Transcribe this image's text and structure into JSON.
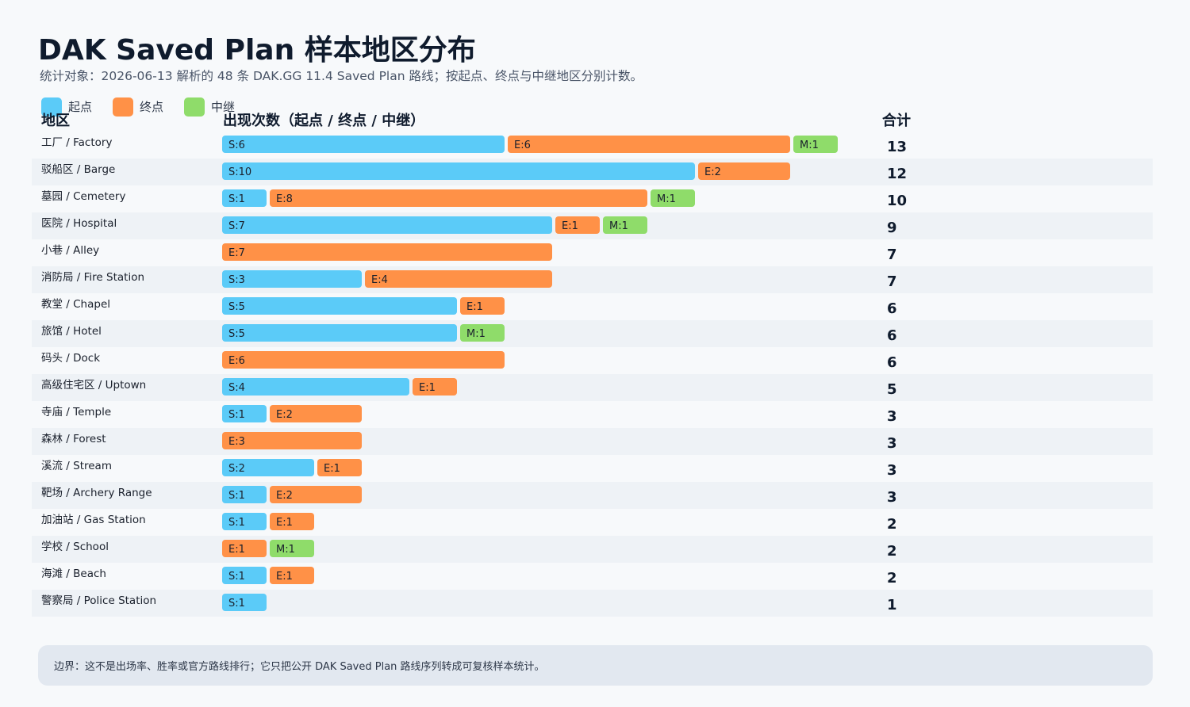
{
  "header": {
    "title": "DAK Saved Plan 样本地区分布",
    "subtitle": "统计对象：2026-06-13 解析的 48 条 DAK.GG 11.4 Saved Plan 路线；按起点、终点与中继地区分别计数。"
  },
  "legend": {
    "start": "起点",
    "end": "终点",
    "mid": "中继"
  },
  "columns": {
    "region": "地区",
    "count": "出现次数（起点 / 终点 / 中继）",
    "total": "合计"
  },
  "colors": {
    "start": "#5bcbf8",
    "end": "#ff9147",
    "mid": "#8fdc6a",
    "row_alt": "#eef2f6"
  },
  "chart_data": {
    "type": "bar",
    "orientation": "horizontal-stacked",
    "categories": [
      "工厂 / Factory",
      "驳船区 / Barge",
      "墓园 / Cemetery",
      "医院 / Hospital",
      "小巷 / Alley",
      "消防局 / Fire Station",
      "教堂 / Chapel",
      "旅馆 / Hotel",
      "码头 / Dock",
      "高级住宅区 / Uptown",
      "寺庙 / Temple",
      "森林 / Forest",
      "溪流 / Stream",
      "靶场 / Archery Range",
      "加油站 / Gas Station",
      "学校 / School",
      "海滩 / Beach",
      "警察局 / Police Station"
    ],
    "series": [
      {
        "name": "起点",
        "prefix": "S",
        "values": [
          6,
          10,
          1,
          7,
          0,
          3,
          5,
          5,
          0,
          4,
          1,
          0,
          2,
          1,
          1,
          0,
          1,
          1
        ]
      },
      {
        "name": "终点",
        "prefix": "E",
        "values": [
          6,
          2,
          8,
          1,
          7,
          4,
          1,
          0,
          6,
          1,
          2,
          3,
          1,
          2,
          1,
          1,
          1,
          0
        ]
      },
      {
        "name": "中继",
        "prefix": "M",
        "values": [
          1,
          0,
          1,
          1,
          0,
          0,
          0,
          1,
          0,
          0,
          0,
          0,
          0,
          0,
          0,
          1,
          0,
          0
        ]
      }
    ],
    "totals": [
      13,
      12,
      10,
      9,
      7,
      7,
      6,
      6,
      6,
      5,
      3,
      3,
      3,
      3,
      2,
      2,
      2,
      1
    ]
  },
  "footer": {
    "note": "边界：这不是出场率、胜率或官方路线排行；它只把公开 DAK Saved Plan 路线序列转成可复核样本统计。"
  }
}
